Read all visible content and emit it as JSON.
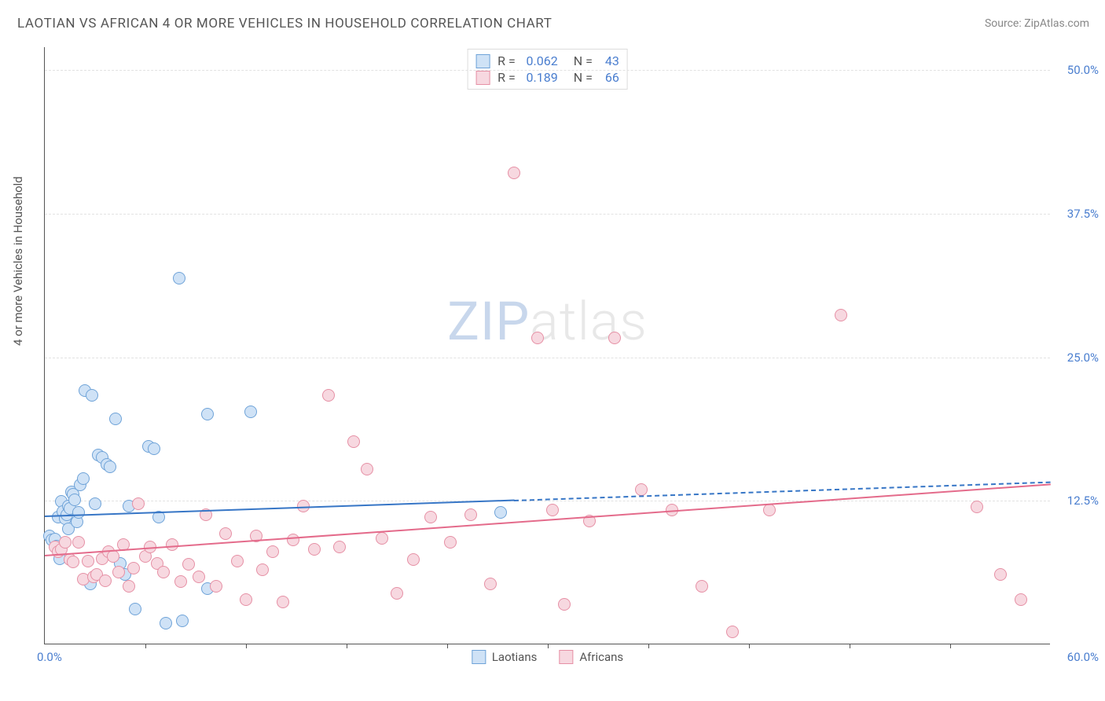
{
  "title": "LAOTIAN VS AFRICAN 4 OR MORE VEHICLES IN HOUSEHOLD CORRELATION CHART",
  "source": "Source: ZipAtlas.com",
  "ylabel": "4 or more Vehicles in Household",
  "watermark_zip": "ZIP",
  "watermark_atlas": "atlas",
  "chart": {
    "type": "scatter",
    "xlim": [
      0,
      60
    ],
    "ylim": [
      0,
      52
    ],
    "xaxis_label_min": "0.0%",
    "xaxis_label_max": "60.0%",
    "ytick_positions": [
      12.5,
      25.0,
      37.5,
      50.0
    ],
    "ytick_labels": [
      "12.5%",
      "25.0%",
      "37.5%",
      "50.0%"
    ],
    "xtick_positions": [
      6,
      12,
      18,
      24,
      30,
      36,
      42,
      48,
      54
    ],
    "background_color": "#ffffff",
    "grid_color": "#e2e2e2",
    "axis_color": "#555555",
    "tick_label_color": "#4a7ecf",
    "marker_radius": 8,
    "marker_border_width": 1.5,
    "series": [
      {
        "name": "Laotians",
        "fill": "#cfe2f6",
        "stroke": "#6fa3d8",
        "trend_color": "#3776c6",
        "trend_start": [
          0,
          11.2
        ],
        "trend_solid_end": [
          28,
          12.6
        ],
        "trend_dash_end": [
          60,
          14.2
        ],
        "stats": {
          "R": "0.062",
          "N": "43"
        },
        "points": [
          [
            0.3,
            9.4
          ],
          [
            0.4,
            9.0
          ],
          [
            0.6,
            9.1
          ],
          [
            0.7,
            8.5
          ],
          [
            0.8,
            11.0
          ],
          [
            0.9,
            7.4
          ],
          [
            1.0,
            12.4
          ],
          [
            1.1,
            11.5
          ],
          [
            1.2,
            10.9
          ],
          [
            1.3,
            11.2
          ],
          [
            1.4,
            12.0
          ],
          [
            1.4,
            10.0
          ],
          [
            1.5,
            11.8
          ],
          [
            1.6,
            13.2
          ],
          [
            1.7,
            13.0
          ],
          [
            1.8,
            12.5
          ],
          [
            1.9,
            10.6
          ],
          [
            2.0,
            11.4
          ],
          [
            2.1,
            13.8
          ],
          [
            2.3,
            14.4
          ],
          [
            2.4,
            22.0
          ],
          [
            2.7,
            5.2
          ],
          [
            2.8,
            21.6
          ],
          [
            3.0,
            12.2
          ],
          [
            3.2,
            16.4
          ],
          [
            3.4,
            16.2
          ],
          [
            3.7,
            15.6
          ],
          [
            3.9,
            15.4
          ],
          [
            4.2,
            19.6
          ],
          [
            4.5,
            7.0
          ],
          [
            4.8,
            6.0
          ],
          [
            5.0,
            12.0
          ],
          [
            5.4,
            3.0
          ],
          [
            6.2,
            17.2
          ],
          [
            6.5,
            17.0
          ],
          [
            6.8,
            11.0
          ],
          [
            7.2,
            1.8
          ],
          [
            8.0,
            31.8
          ],
          [
            8.2,
            2.0
          ],
          [
            9.7,
            4.8
          ],
          [
            9.7,
            20.0
          ],
          [
            12.3,
            20.2
          ],
          [
            27.2,
            11.4
          ]
        ]
      },
      {
        "name": "Africans",
        "fill": "#f7d8e0",
        "stroke": "#e690a5",
        "trend_color": "#e46b8b",
        "trend_start": [
          0,
          7.8
        ],
        "trend_solid_end": [
          60,
          14.0
        ],
        "trend_dash_end": null,
        "stats": {
          "R": "0.189",
          "N": "66"
        },
        "points": [
          [
            0.6,
            8.4
          ],
          [
            0.8,
            8.0
          ],
          [
            1.0,
            8.2
          ],
          [
            1.2,
            8.8
          ],
          [
            1.5,
            7.3
          ],
          [
            1.7,
            7.1
          ],
          [
            2.0,
            8.8
          ],
          [
            2.3,
            5.6
          ],
          [
            2.6,
            7.2
          ],
          [
            2.9,
            5.8
          ],
          [
            3.1,
            6.0
          ],
          [
            3.4,
            7.4
          ],
          [
            3.6,
            5.5
          ],
          [
            3.8,
            8.0
          ],
          [
            4.1,
            7.6
          ],
          [
            4.4,
            6.2
          ],
          [
            4.7,
            8.6
          ],
          [
            5.0,
            5.0
          ],
          [
            5.3,
            6.6
          ],
          [
            5.6,
            12.2
          ],
          [
            6.0,
            7.6
          ],
          [
            6.3,
            8.4
          ],
          [
            6.7,
            7.0
          ],
          [
            7.1,
            6.2
          ],
          [
            7.6,
            8.6
          ],
          [
            8.1,
            5.4
          ],
          [
            8.6,
            6.9
          ],
          [
            9.2,
            5.8
          ],
          [
            9.6,
            11.2
          ],
          [
            10.2,
            5.0
          ],
          [
            10.8,
            9.6
          ],
          [
            11.5,
            7.2
          ],
          [
            12.0,
            3.8
          ],
          [
            12.6,
            9.4
          ],
          [
            13.0,
            6.4
          ],
          [
            13.6,
            8.0
          ],
          [
            14.2,
            3.6
          ],
          [
            14.8,
            9.0
          ],
          [
            15.4,
            12.0
          ],
          [
            16.1,
            8.2
          ],
          [
            16.9,
            21.6
          ],
          [
            17.6,
            8.4
          ],
          [
            18.4,
            17.6
          ],
          [
            19.2,
            15.2
          ],
          [
            20.1,
            9.2
          ],
          [
            21.0,
            4.4
          ],
          [
            22.0,
            7.3
          ],
          [
            23.0,
            11.0
          ],
          [
            24.2,
            8.8
          ],
          [
            25.4,
            11.2
          ],
          [
            26.6,
            5.2
          ],
          [
            28.0,
            41.0
          ],
          [
            29.4,
            26.6
          ],
          [
            30.3,
            11.6
          ],
          [
            31.0,
            3.4
          ],
          [
            32.5,
            10.7
          ],
          [
            34.0,
            26.6
          ],
          [
            35.6,
            13.4
          ],
          [
            37.4,
            11.6
          ],
          [
            39.2,
            5.0
          ],
          [
            41.0,
            1.0
          ],
          [
            43.2,
            11.6
          ],
          [
            47.5,
            28.6
          ],
          [
            55.6,
            11.9
          ],
          [
            57.0,
            6.0
          ],
          [
            58.2,
            3.8
          ]
        ]
      }
    ]
  },
  "stats_label_R": "R =",
  "stats_label_N": "N =",
  "legend": [
    "Laotians",
    "Africans"
  ]
}
